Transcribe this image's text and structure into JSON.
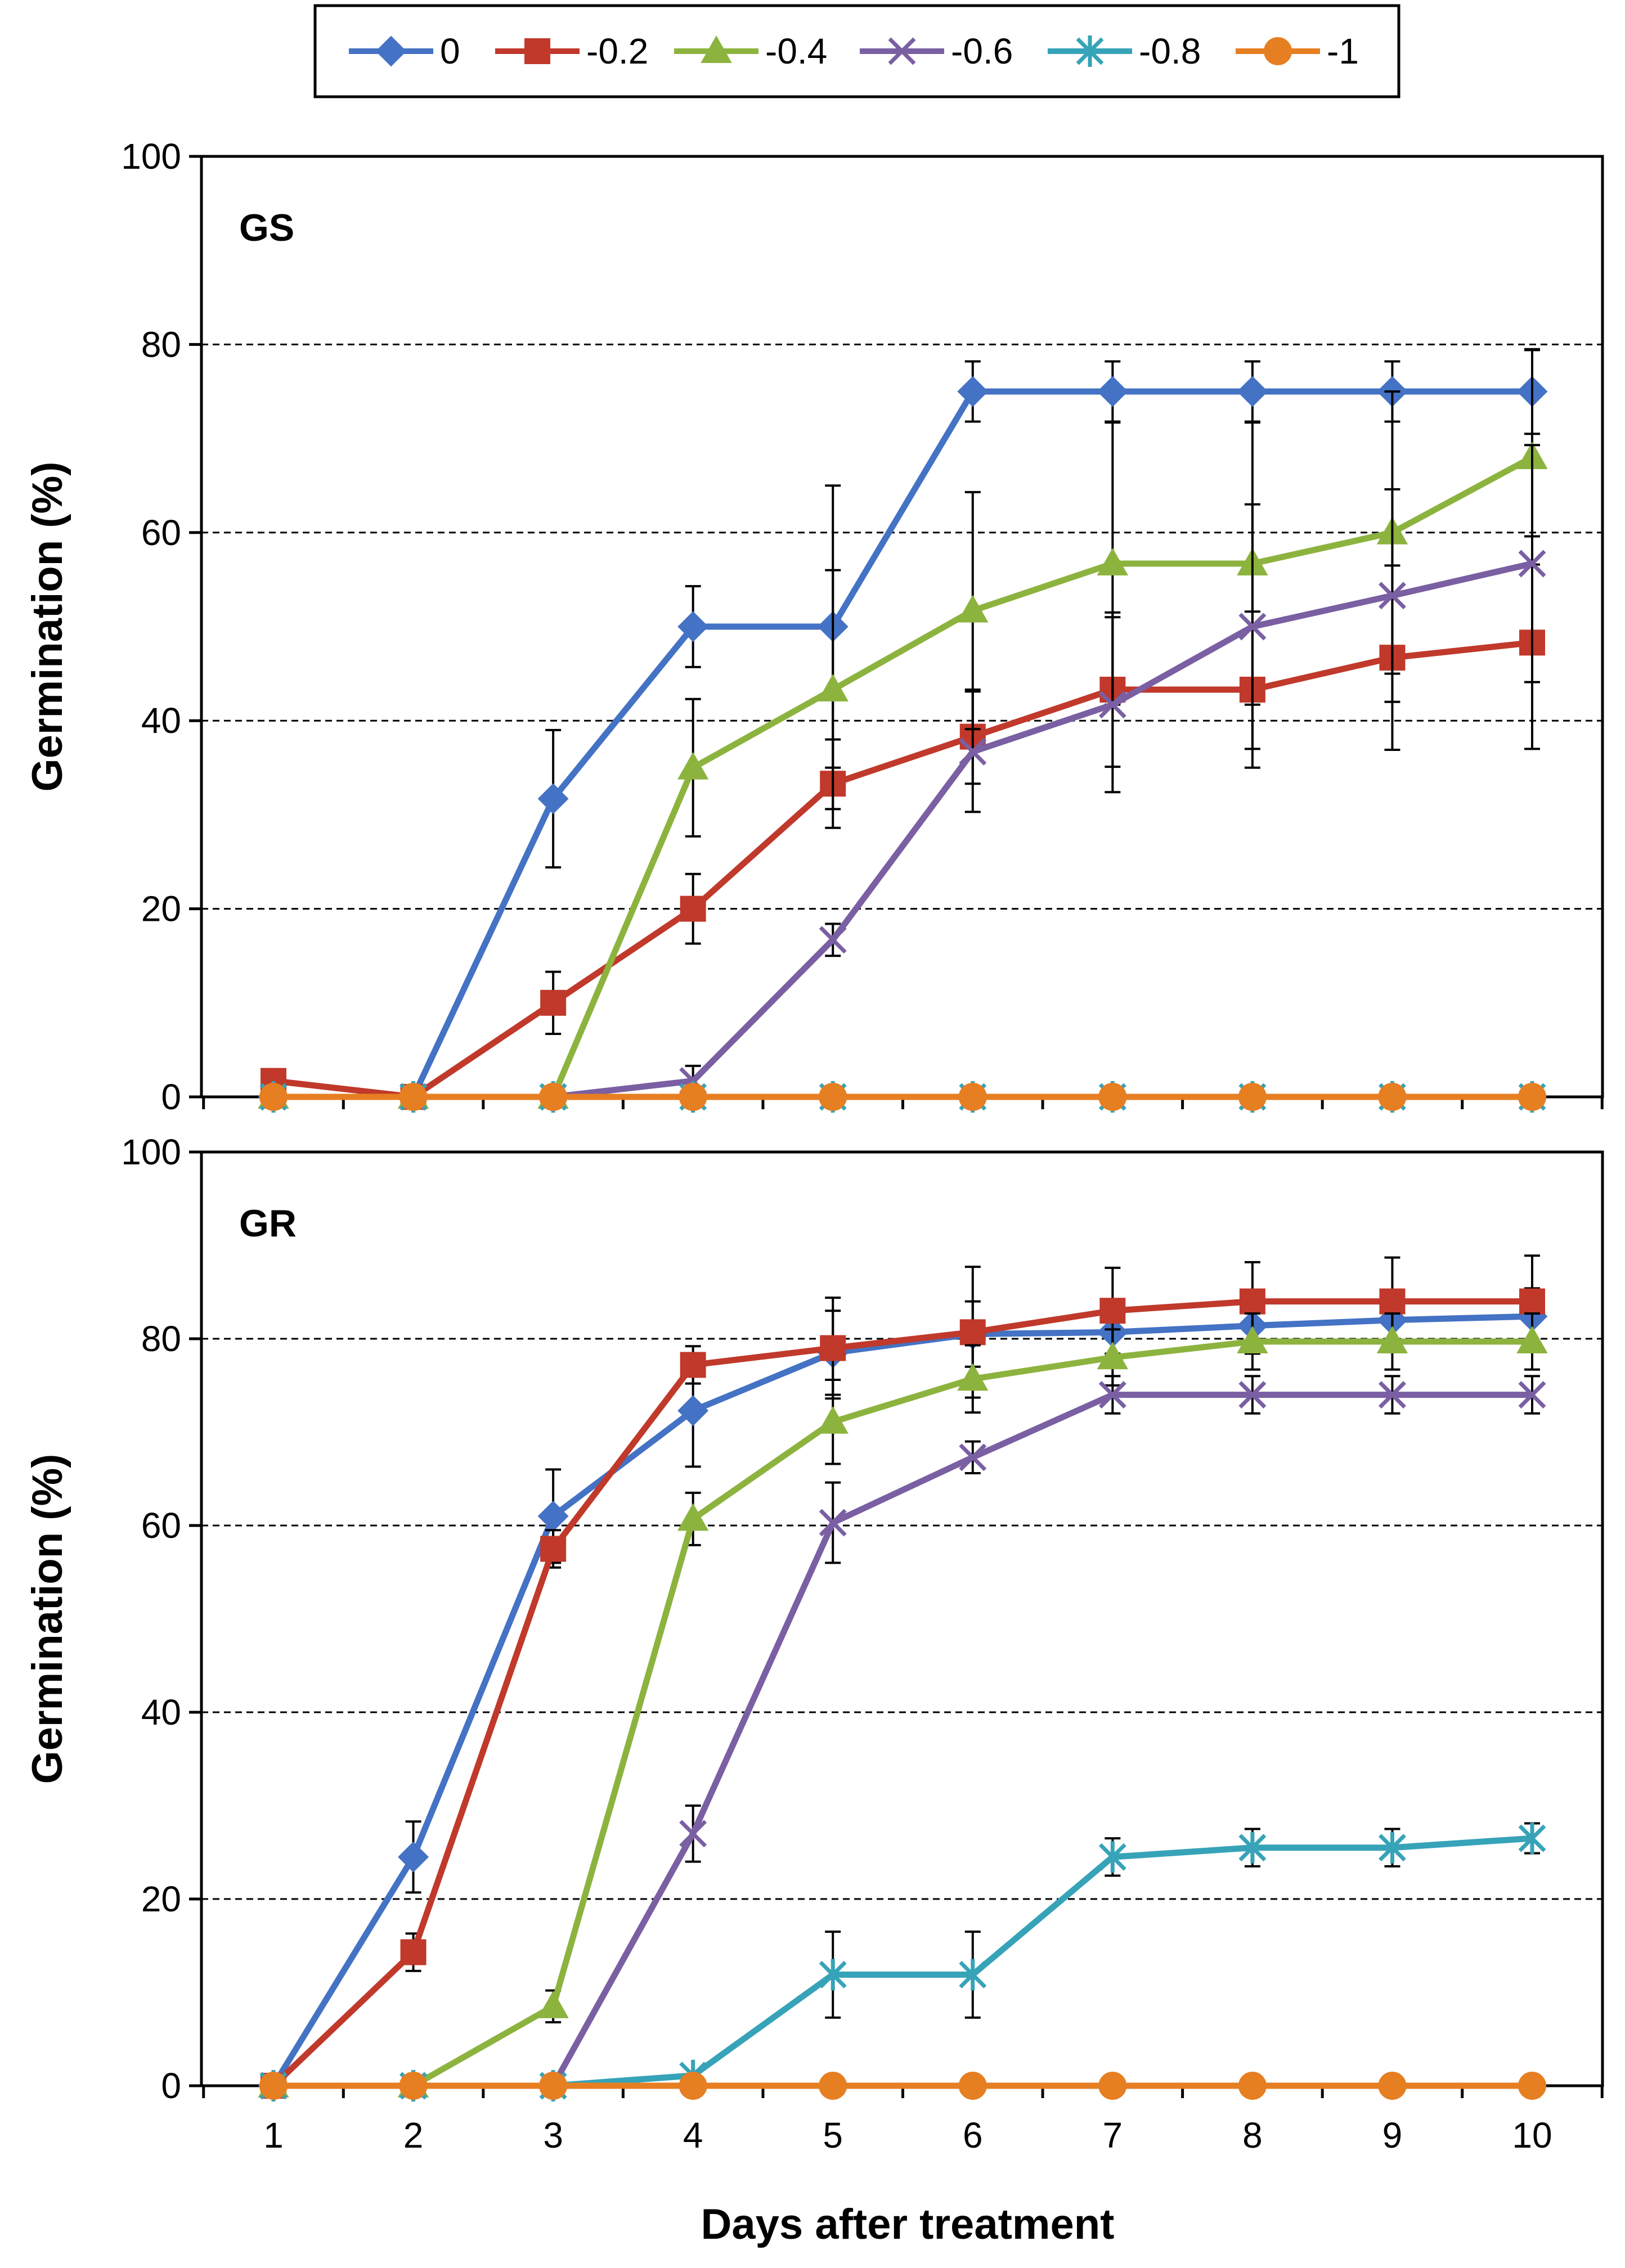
{
  "legend": {
    "items": [
      {
        "label": "0",
        "color": "#4472C4",
        "marker": "diamond"
      },
      {
        "label": "-0.2",
        "color": "#C0392B",
        "marker": "square"
      },
      {
        "label": "-0.4",
        "color": "#8DB33F",
        "marker": "triangle"
      },
      {
        "label": "-0.6",
        "color": "#7A5FA3",
        "marker": "x"
      },
      {
        "label": "-0.8",
        "color": "#36A3B8",
        "marker": "star"
      },
      {
        "label": "-1",
        "color": "#E67E22",
        "marker": "circle"
      }
    ],
    "placement": "top-center"
  },
  "chart_data": [
    {
      "type": "line",
      "panel_label": "GS",
      "ylabel": "Germination (%)",
      "ylim": [
        0,
        100
      ],
      "yticks": [
        0,
        20,
        40,
        60,
        80,
        100
      ],
      "x": [
        1,
        2,
        3,
        4,
        5,
        6,
        7,
        8,
        9,
        10
      ],
      "grid": "horizontal dashed",
      "series": [
        {
          "name": "0",
          "values": [
            0,
            0,
            31.7,
            50,
            50,
            75,
            75,
            75,
            75,
            75
          ],
          "errors": [
            0,
            0,
            7.3,
            4.3,
            15,
            3.2,
            3.2,
            3.2,
            3.2,
            4.5
          ]
        },
        {
          "name": "-0.2",
          "values": [
            1.7,
            0,
            10,
            20,
            33.3,
            38.3,
            43.3,
            43.3,
            46.7,
            48.3
          ],
          "errors": [
            0,
            0,
            3.3,
            3.7,
            4.7,
            5,
            8.2,
            8.3,
            9.8,
            11.3
          ]
        },
        {
          "name": "-0.4",
          "values": [
            0,
            0,
            0,
            35,
            43.3,
            51.7,
            56.7,
            56.7,
            60,
            68
          ],
          "errors": [
            0,
            0,
            0,
            7.3,
            12.7,
            12.6,
            15,
            15,
            15,
            11.4
          ]
        },
        {
          "name": "-0.6",
          "values": [
            0,
            0,
            0,
            1.7,
            16.7,
            36.7,
            41.7,
            50,
            53.3,
            56.7
          ],
          "errors": [
            0,
            0,
            0,
            1.6,
            1.7,
            6.4,
            9.3,
            13,
            11.3,
            12.6
          ]
        },
        {
          "name": "-0.8",
          "values": [
            0,
            0,
            0,
            0,
            0,
            0,
            0,
            0,
            0,
            0
          ],
          "errors": [
            0,
            0,
            0,
            0,
            0,
            0,
            0,
            0,
            0,
            0
          ]
        },
        {
          "name": "-1",
          "values": [
            0,
            0,
            0,
            0,
            0,
            0,
            0,
            0,
            0,
            0
          ],
          "errors": [
            0,
            0,
            0,
            0,
            0,
            0,
            0,
            0,
            0,
            0
          ]
        }
      ]
    },
    {
      "type": "line",
      "panel_label": "GR",
      "ylabel": "Germination (%)",
      "xlabel": "Days after treatment",
      "ylim": [
        0,
        100
      ],
      "yticks": [
        0,
        20,
        40,
        60,
        80,
        100
      ],
      "x": [
        1,
        2,
        3,
        4,
        5,
        6,
        7,
        8,
        9,
        10
      ],
      "xtick_labels": [
        "1",
        "2",
        "3",
        "4",
        "5",
        "6",
        "7",
        "8",
        "9",
        "10"
      ],
      "grid": "horizontal dashed",
      "series": [
        {
          "name": "0",
          "values": [
            0,
            24.5,
            61,
            72.3,
            78.5,
            80.5,
            80.7,
            81.4,
            82,
            82.4
          ],
          "errors": [
            0,
            3.8,
            5,
            6,
            4.5,
            3.5,
            3.2,
            3,
            3,
            3
          ]
        },
        {
          "name": "-0.2",
          "values": [
            0,
            14.3,
            57.5,
            77.2,
            79,
            80.7,
            83,
            84,
            84,
            84
          ],
          "errors": [
            0,
            2,
            2,
            2,
            5.4,
            7,
            4.6,
            4.2,
            4.7,
            4.9
          ]
        },
        {
          "name": "-0.4",
          "values": [
            0,
            0,
            8.5,
            60.7,
            71.1,
            75.7,
            78,
            79.7,
            79.7,
            79.7
          ],
          "errors": [
            0,
            0,
            1.7,
            2.8,
            4.5,
            3.6,
            3,
            3,
            3,
            3
          ]
        },
        {
          "name": "-0.6",
          "values": [
            0,
            0,
            0,
            27,
            60.3,
            67.3,
            74,
            74,
            74,
            74
          ],
          "errors": [
            0,
            0,
            0,
            3,
            4.3,
            1.7,
            2,
            2,
            2,
            2
          ]
        },
        {
          "name": "-0.8",
          "values": [
            0,
            0,
            0,
            1.1,
            11.9,
            11.9,
            24.5,
            25.5,
            25.5,
            26.5
          ],
          "errors": [
            0,
            0,
            0,
            0,
            4.6,
            4.6,
            2,
            2,
            2,
            1.6
          ]
        },
        {
          "name": "-1",
          "values": [
            0,
            0,
            0,
            0,
            0,
            0,
            0,
            0,
            0,
            0
          ],
          "errors": [
            0,
            0,
            0,
            0,
            0,
            0,
            0,
            0,
            0,
            0
          ]
        }
      ]
    }
  ]
}
